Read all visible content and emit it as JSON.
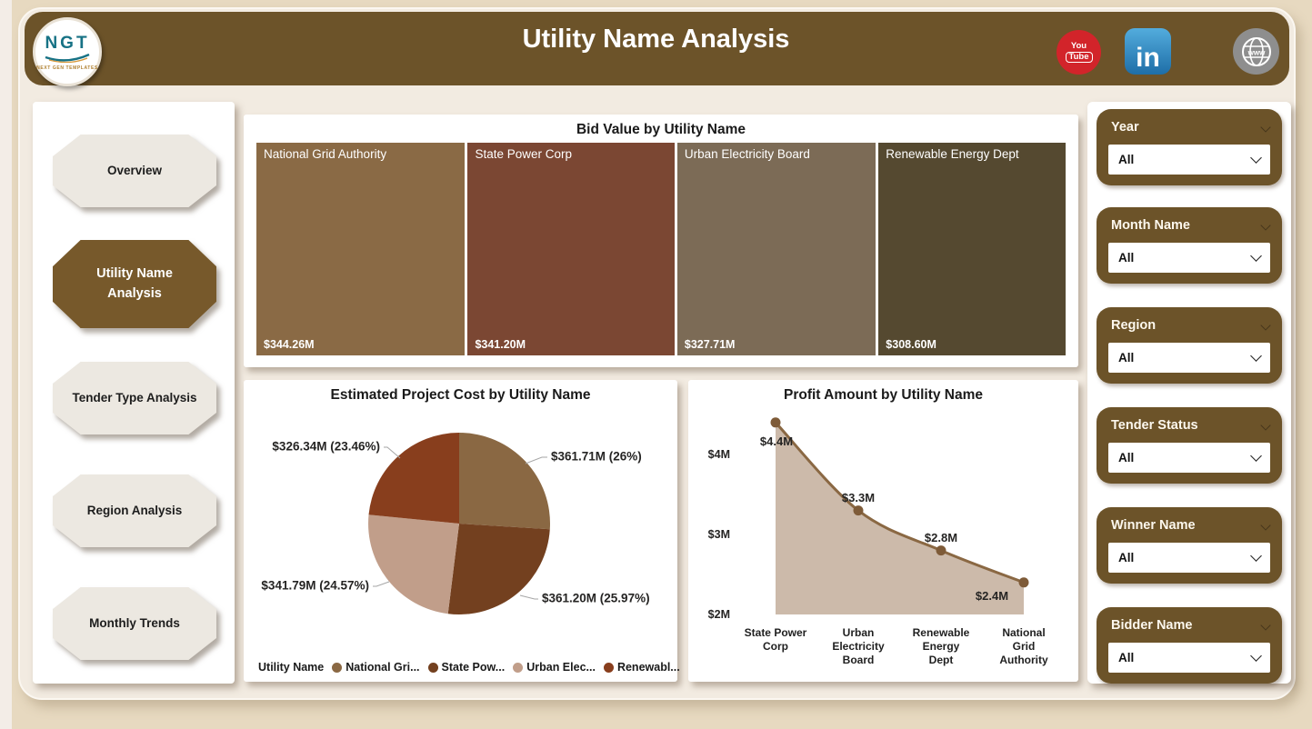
{
  "header": {
    "title": "Utility Name Analysis",
    "logo": {
      "text": "NGT",
      "subtext": "NEXT GEN TEMPLATES"
    },
    "social": {
      "youtube": {
        "line1": "You",
        "line2": "Tube"
      },
      "linkedin": {
        "label": "in"
      },
      "website": {
        "label": "www"
      }
    }
  },
  "sidebar": {
    "items": [
      {
        "label": "Overview",
        "active": false
      },
      {
        "label": "Utility Name Analysis",
        "active": true
      },
      {
        "label": "Tender Type Analysis",
        "active": false
      },
      {
        "label": "Region Analysis",
        "active": false
      },
      {
        "label": "Monthly Trends",
        "active": false
      }
    ]
  },
  "filters": [
    {
      "label": "Year",
      "value": "All"
    },
    {
      "label": "Month Name",
      "value": "All"
    },
    {
      "label": "Region",
      "value": "All"
    },
    {
      "label": "Tender Status",
      "value": "All"
    },
    {
      "label": "Winner Name",
      "value": "All"
    },
    {
      "label": "Bidder Name",
      "value": "All"
    }
  ],
  "chart_data": [
    {
      "type": "treemap",
      "title": "Bid Value by Utility Name",
      "categories": [
        "National Grid Authority",
        "State Power Corp",
        "Urban Electricity Board",
        "Renewable Energy Dept"
      ],
      "values": [
        344.26,
        341.2,
        327.71,
        308.6
      ],
      "value_labels": [
        "$344.26M",
        "$341.20M",
        "$327.71M",
        "$308.60M"
      ],
      "colors": [
        "#8A6A45",
        "#7B4733",
        "#7C6B56",
        "#554930"
      ]
    },
    {
      "type": "pie",
      "title": "Estimated Project Cost by Utility Name",
      "categories": [
        "National Grid Authority",
        "State Power Corp",
        "Urban Electricity Board",
        "Renewable Energy Dept"
      ],
      "values": [
        361.71,
        361.2,
        341.79,
        326.34
      ],
      "percents": [
        26,
        25.97,
        24.57,
        23.46
      ],
      "point_labels": [
        "$361.71M (26%)",
        "$361.20M (25.97%)",
        "$341.79M (24.57%)",
        "$326.34M (23.46%)"
      ],
      "colors": [
        "#8A6843",
        "#73401F",
        "#C19E8A",
        "#883E1D"
      ],
      "legend_title": "Utility Name",
      "legend_labels": [
        "National Gri...",
        "State Pow...",
        "Urban Elec...",
        "Renewabl..."
      ]
    },
    {
      "type": "area",
      "title": "Profit Amount by Utility Name",
      "categories": [
        [
          "State Power",
          "Corp"
        ],
        [
          "Urban",
          "Electricity",
          "Board"
        ],
        [
          "Renewable",
          "Energy",
          "Dept"
        ],
        [
          "National",
          "Grid",
          "Authority"
        ]
      ],
      "values": [
        4.4,
        3.3,
        2.8,
        2.4
      ],
      "point_labels": [
        "$4.4M",
        "$3.3M",
        "$2.8M",
        "$2.4M"
      ],
      "y_ticks": [
        {
          "label": "$4M",
          "value": 4
        },
        {
          "label": "$3M",
          "value": 3
        },
        {
          "label": "$2M",
          "value": 2
        }
      ],
      "baseline_value": 2,
      "ylim": [
        2,
        4.75
      ],
      "line_color": "#8A6843",
      "fill_color": "#CCBAAA",
      "marker_color": "#7E5B38"
    }
  ]
}
